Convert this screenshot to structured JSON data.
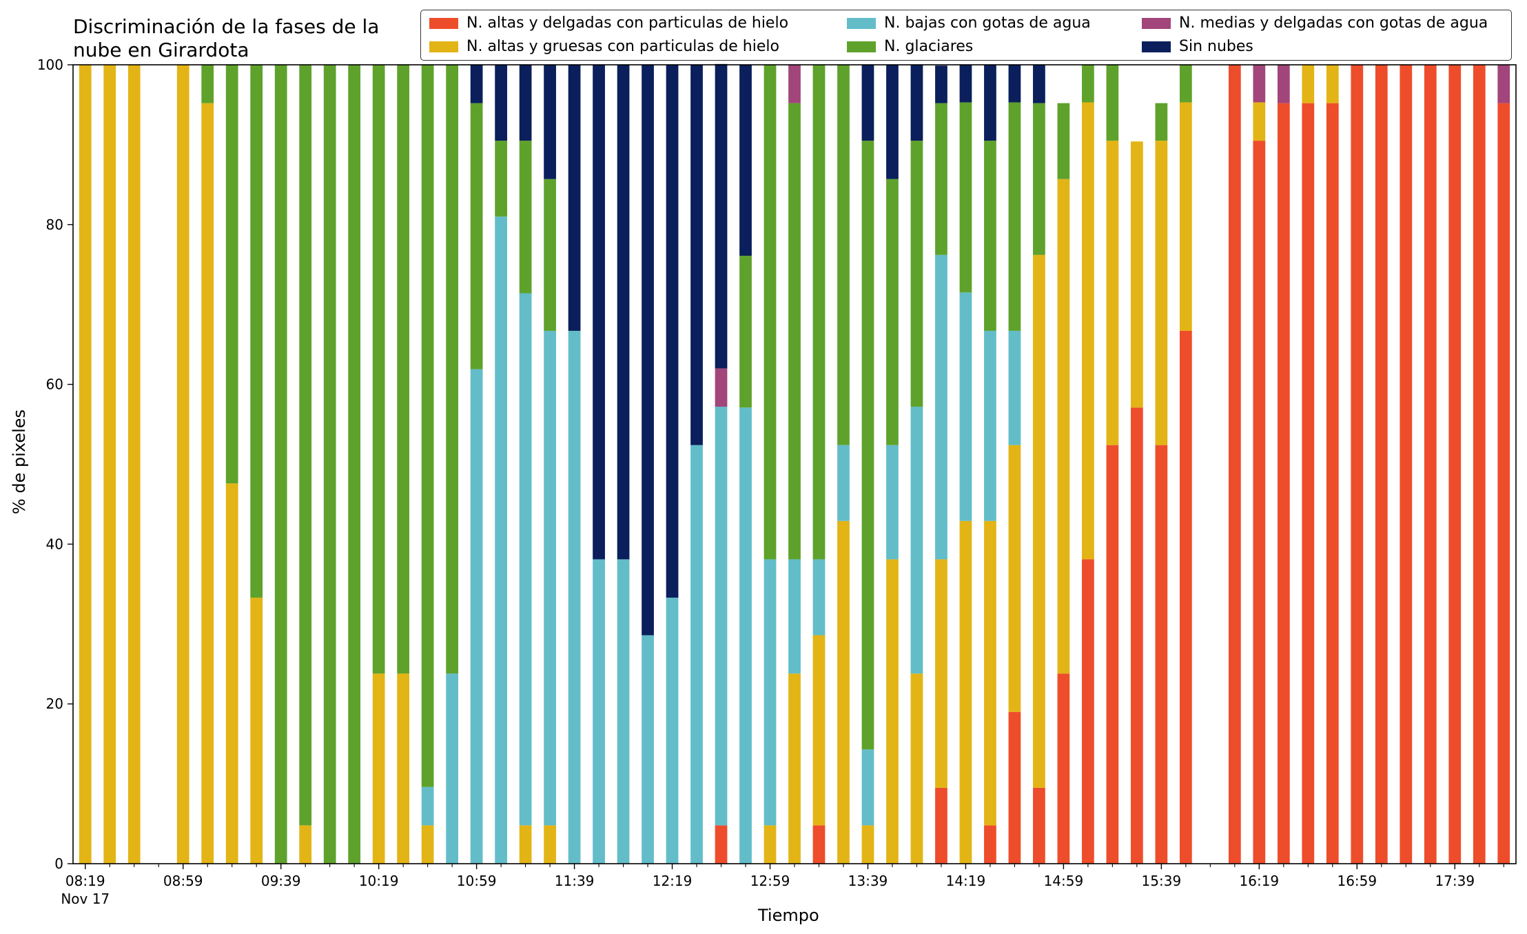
{
  "chart_data": {
    "type": "bar",
    "stacked": true,
    "title_lines": [
      "Discriminación de la fases de la",
      "nube en Girardota"
    ],
    "xlabel": "Tiempo",
    "ylabel": "% de pixeles",
    "ylim": [
      0,
      100
    ],
    "yticks": [
      0,
      20,
      40,
      60,
      80,
      100
    ],
    "grid": false,
    "legend_position": "top-right",
    "x_tick_labels": [
      "08:19",
      "08:59",
      "09:39",
      "10:19",
      "10:59",
      "11:39",
      "12:19",
      "12:59",
      "13:39",
      "14:19",
      "14:59",
      "15:39",
      "16:19",
      "16:59",
      "17:39"
    ],
    "x_date_label": "Nov 17",
    "categories": [
      "08:19",
      "08:29",
      "08:39",
      "08:49",
      "08:59",
      "09:09",
      "09:19",
      "09:29",
      "09:39",
      "09:49",
      "09:59",
      "10:09",
      "10:19",
      "10:29",
      "10:39",
      "10:49",
      "10:59",
      "11:09",
      "11:19",
      "11:29",
      "11:39",
      "11:49",
      "11:59",
      "12:09",
      "12:19",
      "12:29",
      "12:39",
      "12:49",
      "12:59",
      "13:09",
      "13:19",
      "13:29",
      "13:39",
      "13:49",
      "13:59",
      "14:09",
      "14:19",
      "14:29",
      "14:39",
      "14:49",
      "14:59",
      "15:09",
      "15:19",
      "15:29",
      "15:39",
      "15:49",
      "15:59",
      "16:09",
      "16:19",
      "16:29",
      "16:39",
      "16:49",
      "16:59",
      "17:09",
      "17:19",
      "17:29",
      "17:39",
      "17:49",
      "17:59"
    ],
    "series": [
      {
        "name": "N. altas y delgadas con particulas de hielo",
        "color": "#ee4d2b",
        "values": [
          0,
          0,
          0,
          null,
          0,
          0,
          0,
          0,
          0,
          0,
          0,
          0,
          0,
          0,
          0,
          0,
          0,
          0,
          0,
          0,
          0,
          0,
          0,
          0,
          0,
          0,
          4.8,
          0,
          0,
          0,
          4.8,
          0,
          0,
          0,
          0,
          9.5,
          0,
          4.8,
          19,
          9.5,
          23.8,
          38.1,
          52.4,
          57.1,
          52.4,
          66.7,
          null,
          100,
          90.5,
          95.2,
          95.2,
          95.2,
          100,
          100,
          100,
          100,
          100,
          100,
          95.2
        ]
      },
      {
        "name": "N. altas y gruesas con particulas de hielo",
        "color": "#e3b415",
        "values": [
          100,
          100,
          100,
          null,
          100,
          95.2,
          47.6,
          33.3,
          0,
          4.8,
          0,
          0,
          23.8,
          23.8,
          4.8,
          0,
          0,
          0,
          4.8,
          4.8,
          0,
          0,
          0,
          0,
          0,
          0,
          0,
          0,
          4.8,
          23.8,
          23.8,
          42.9,
          4.8,
          38.1,
          23.8,
          28.6,
          42.9,
          38.1,
          33.4,
          66.7,
          61.9,
          57.2,
          38.1,
          33.3,
          38.1,
          28.6,
          null,
          0,
          4.8,
          0,
          4.8,
          4.8,
          0,
          0,
          0,
          0,
          0,
          0,
          0
        ]
      },
      {
        "name": "N. bajas con gotas de agua",
        "color": "#62bdc9",
        "values": [
          0,
          0,
          0,
          null,
          0,
          0,
          0,
          0,
          0,
          0,
          0,
          0,
          0,
          0,
          4.8,
          23.8,
          61.9,
          81,
          66.6,
          61.9,
          66.7,
          38.1,
          38.1,
          28.6,
          33.3,
          52.4,
          52.4,
          57.1,
          33.3,
          14.3,
          9.5,
          9.5,
          9.5,
          14.3,
          33.4,
          38.1,
          28.6,
          23.8,
          14.3,
          0,
          0,
          0,
          0,
          0,
          0,
          0,
          null,
          0,
          0,
          0,
          0,
          0,
          0,
          0,
          0,
          0,
          0,
          0,
          0
        ]
      },
      {
        "name": "N. glaciares",
        "color": "#5ea22c",
        "values": [
          0,
          0,
          0,
          null,
          0,
          4.8,
          52.4,
          66.7,
          100,
          95.2,
          100,
          100,
          76.2,
          76.2,
          90.4,
          76.2,
          33.3,
          9.5,
          19.1,
          19,
          0,
          0,
          0,
          0,
          0,
          0,
          0,
          19,
          61.9,
          57.1,
          61.9,
          47.6,
          76.2,
          33.3,
          33.3,
          19,
          23.8,
          23.8,
          28.6,
          19,
          9.5,
          4.7,
          9.5,
          0,
          4.7,
          4.7,
          null,
          0,
          0,
          0,
          0,
          0,
          0,
          0,
          0,
          0,
          0,
          0,
          0
        ]
      },
      {
        "name": "N. medias y delgadas con gotas de agua",
        "color": "#a2457a",
        "values": [
          0,
          0,
          0,
          null,
          0,
          0,
          0,
          0,
          0,
          0,
          0,
          0,
          0,
          0,
          0,
          0,
          0,
          0,
          0,
          0,
          0,
          0,
          0,
          0,
          0,
          0,
          4.8,
          0,
          0,
          4.8,
          0,
          0,
          0,
          0,
          0,
          0,
          0,
          0,
          0,
          0,
          0,
          0,
          0,
          0,
          0,
          0,
          null,
          0,
          4.7,
          4.8,
          0,
          0,
          0,
          0,
          0,
          0,
          0,
          0,
          4.8
        ]
      },
      {
        "name": "Sin nubes",
        "color": "#0a1f5b",
        "values": [
          0,
          0,
          0,
          null,
          0,
          0,
          0,
          0,
          0,
          0,
          0,
          0,
          0,
          0,
          0,
          0,
          4.8,
          9.5,
          9.5,
          14.3,
          33.3,
          61.9,
          61.9,
          71.4,
          66.7,
          47.6,
          38.1,
          23.9,
          0,
          0,
          0,
          0,
          9.5,
          14.3,
          9.5,
          4.7,
          4.7,
          9.5,
          4.7,
          4.8,
          0,
          0,
          0,
          0,
          0,
          0,
          null,
          0,
          0,
          0,
          0,
          0,
          0,
          0,
          0,
          0,
          0,
          0,
          0
        ]
      }
    ]
  }
}
